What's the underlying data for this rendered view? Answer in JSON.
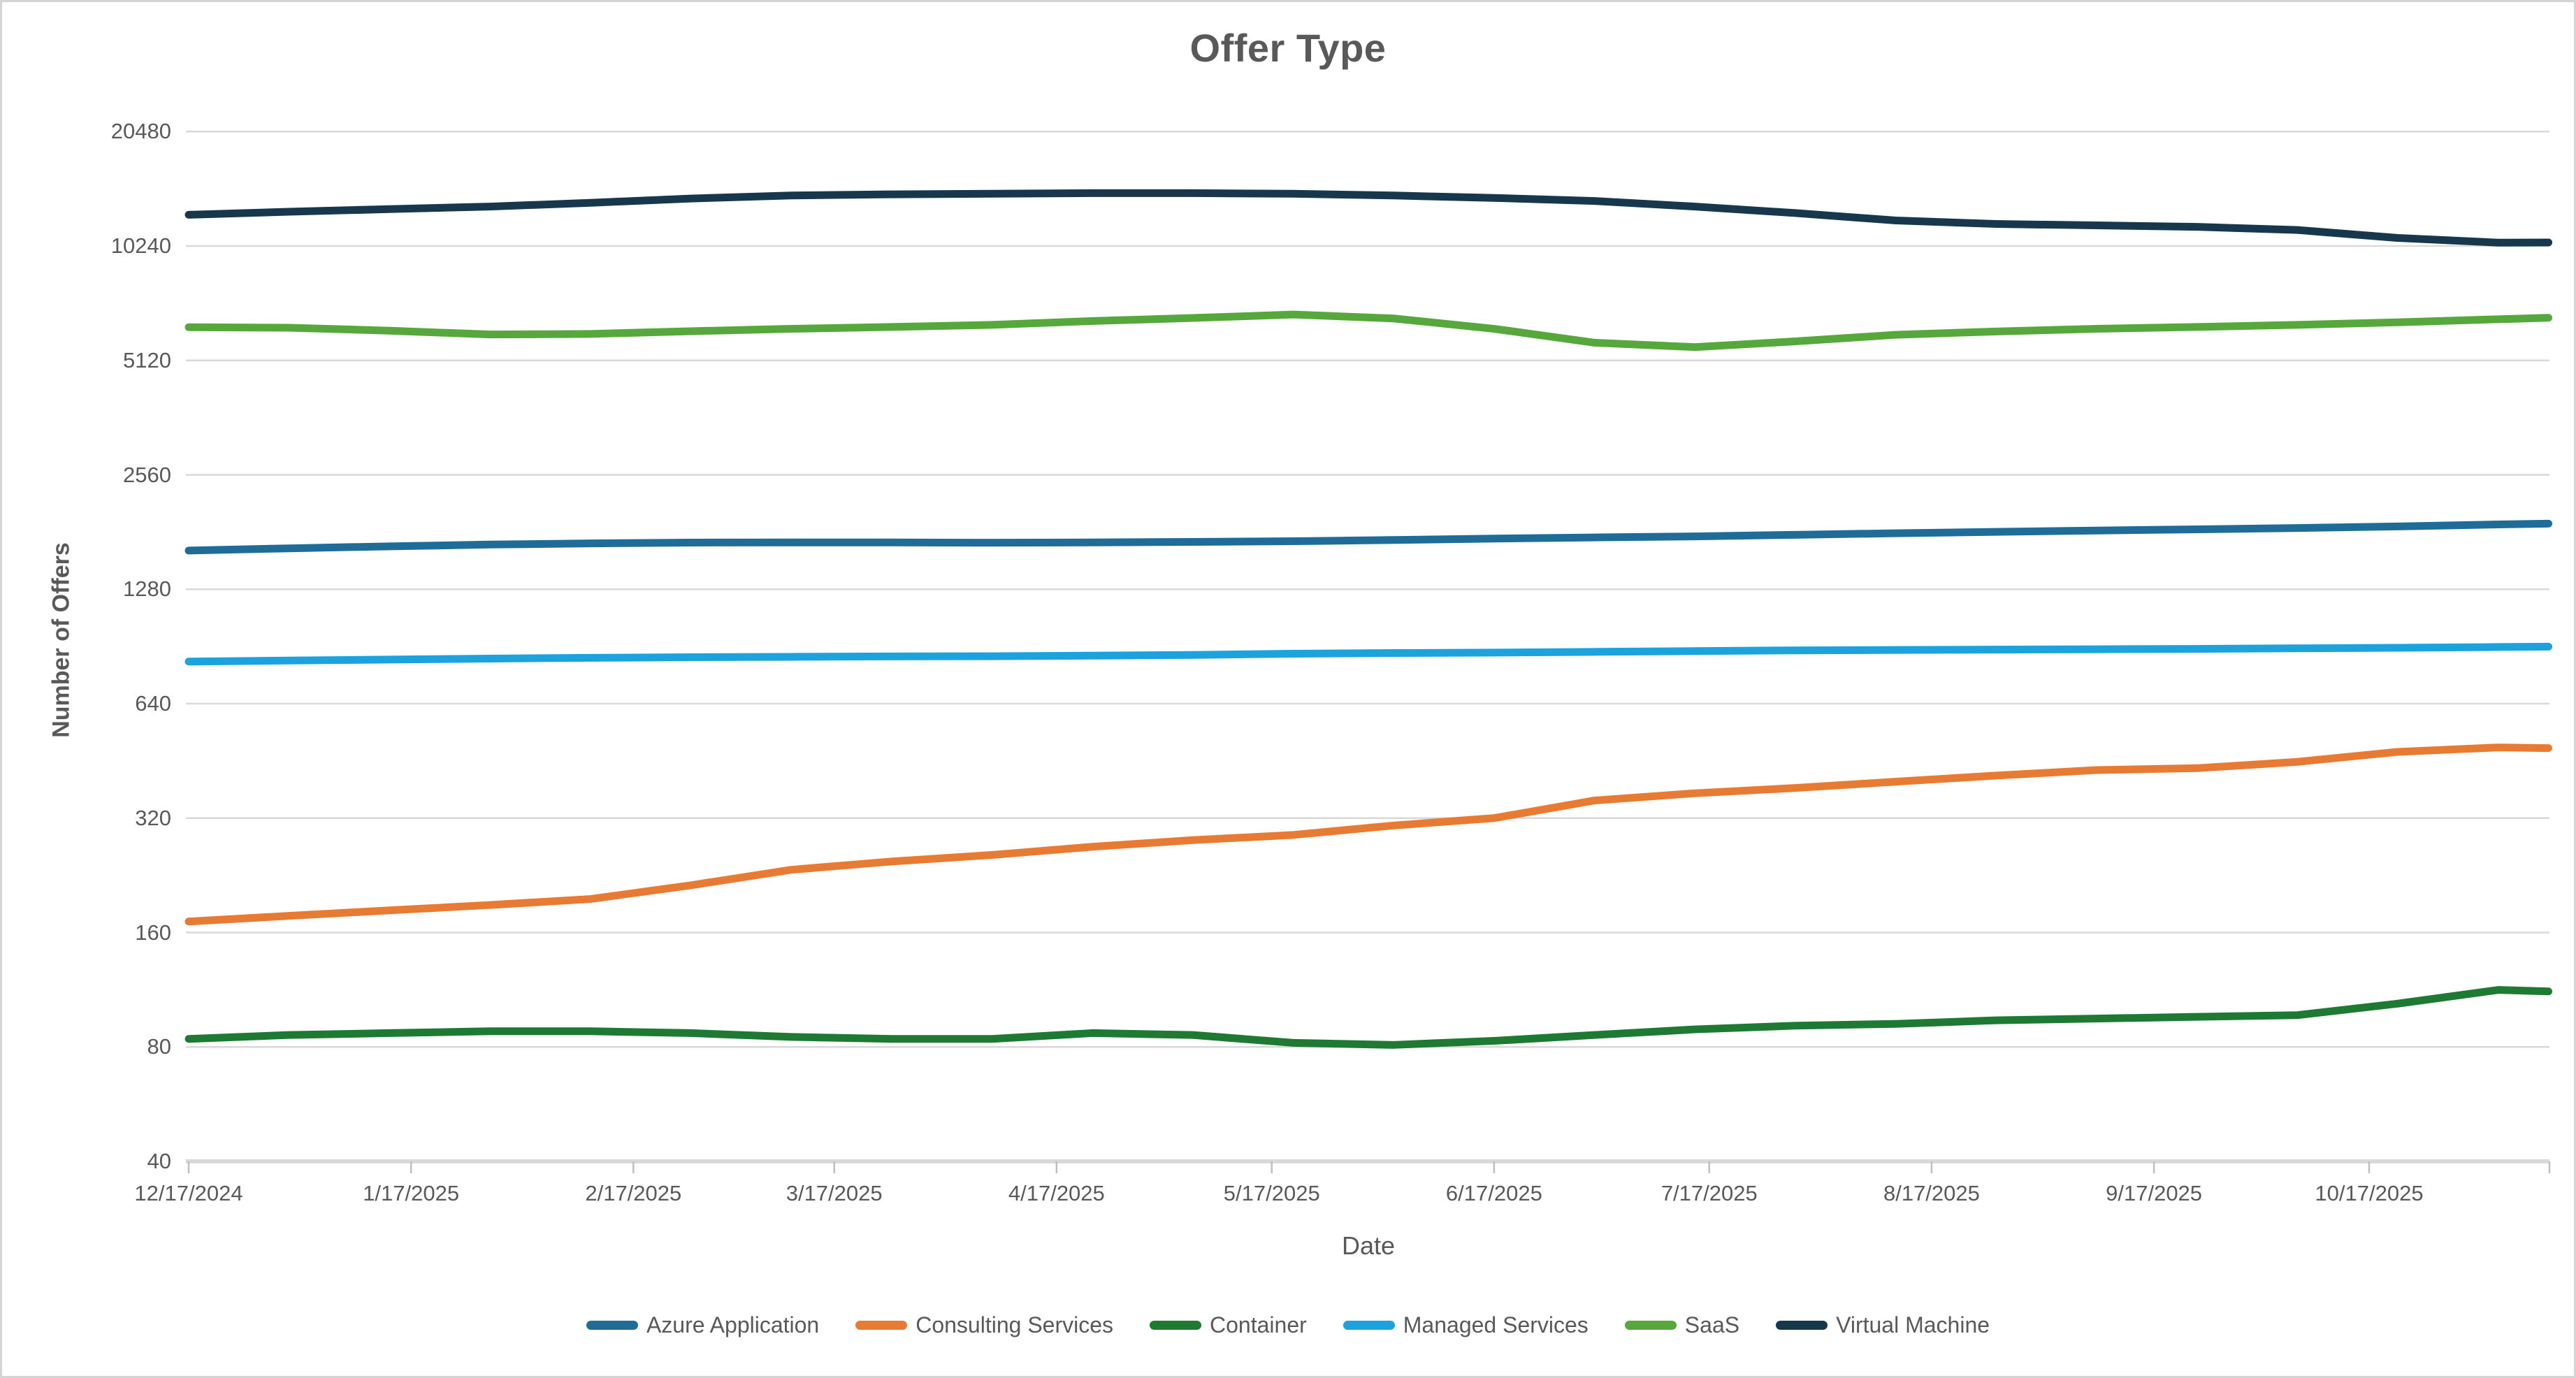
{
  "title": "Offer Type",
  "y_axis": {
    "label": "Number of Offers"
  },
  "x_axis": {
    "label": "Date"
  },
  "colors": {
    "gridline": "#D9D9D9",
    "axis_line": "#D9D9D9",
    "tick_mark": "#BFBFBF",
    "text": "#595959"
  },
  "chart_data": {
    "type": "line",
    "y_scale": "log2",
    "ylim": [
      40,
      20480
    ],
    "grid": true,
    "legend_position": "bottom",
    "y_tick_labels": [
      "40",
      "80",
      "160",
      "320",
      "640",
      "1280",
      "2560",
      "5120",
      "10240",
      "20480"
    ],
    "y_tick_values": [
      40,
      80,
      160,
      320,
      640,
      1280,
      2560,
      5120,
      10240,
      20480
    ],
    "x_tick_labels": [
      "12/17/2024",
      "1/17/2025",
      "2/17/2025",
      "3/17/2025",
      "4/17/2025",
      "5/17/2025",
      "6/17/2025",
      "7/17/2025",
      "8/17/2025",
      "9/17/2025",
      "10/17/2025"
    ],
    "x_tick_day_offsets": [
      0,
      31,
      62,
      90,
      121,
      151,
      182,
      212,
      243,
      274,
      304
    ],
    "x_dates": [
      "12/17/2024",
      "12/31/2024",
      "1/14/2025",
      "1/28/2025",
      "2/11/2025",
      "2/25/2025",
      "3/11/2025",
      "3/25/2025",
      "4/8/2025",
      "4/22/2025",
      "5/6/2025",
      "5/20/2025",
      "6/3/2025",
      "6/17/2025",
      "7/1/2025",
      "7/15/2025",
      "7/29/2025",
      "8/12/2025",
      "8/26/2025",
      "9/9/2025",
      "9/23/2025",
      "10/7/2025",
      "10/21/2025",
      "11/4/2025",
      "11/11/2025"
    ],
    "x_day_offsets": [
      0,
      14,
      28,
      42,
      56,
      70,
      84,
      98,
      112,
      126,
      140,
      154,
      168,
      182,
      196,
      210,
      224,
      238,
      252,
      266,
      280,
      294,
      308,
      322,
      329
    ],
    "series": [
      {
        "name": "Azure Application",
        "color": "#1F6C99",
        "values": [
          1618,
          1640,
          1660,
          1678,
          1690,
          1698,
          1700,
          1700,
          1697,
          1700,
          1705,
          1712,
          1725,
          1740,
          1752,
          1763,
          1780,
          1797,
          1812,
          1827,
          1840,
          1855,
          1873,
          1895,
          1905
        ]
      },
      {
        "name": "Consulting Services",
        "color": "#E87B33",
        "values": [
          171,
          177,
          183,
          189,
          196,
          213,
          234,
          246,
          256,
          269,
          280,
          289,
          306,
          320,
          356,
          372,
          384,
          399,
          414,
          428,
          433,
          450,
          478,
          491,
          489
        ]
      },
      {
        "name": "Container",
        "color": "#1E7A33",
        "values": [
          84,
          86,
          87,
          88,
          88,
          87,
          85,
          84,
          84,
          87,
          86,
          82,
          81,
          83,
          86,
          89,
          91,
          92,
          94,
          95,
          96,
          97,
          104,
          113,
          112
        ]
      },
      {
        "name": "Managed Services",
        "color": "#1CA2DC",
        "values": [
          826,
          831,
          836,
          841,
          845,
          848,
          850,
          852,
          853,
          856,
          860,
          866,
          870,
          872,
          876,
          880,
          884,
          886,
          888,
          890,
          892,
          895,
          898,
          902,
          904
        ]
      },
      {
        "name": "SaaS",
        "color": "#56A73C",
        "values": [
          6260,
          6240,
          6130,
          5990,
          6010,
          6110,
          6200,
          6270,
          6350,
          6500,
          6620,
          6760,
          6600,
          6200,
          5700,
          5550,
          5745,
          5980,
          6100,
          6200,
          6270,
          6350,
          6450,
          6570,
          6630
        ]
      },
      {
        "name": "Virtual Machine",
        "color": "#17384C",
        "values": [
          12370,
          12600,
          12800,
          13000,
          13300,
          13650,
          13900,
          14000,
          14050,
          14100,
          14100,
          14050,
          13900,
          13700,
          13450,
          13000,
          12500,
          11950,
          11700,
          11600,
          11500,
          11280,
          10750,
          10450,
          10460
        ]
      }
    ]
  }
}
